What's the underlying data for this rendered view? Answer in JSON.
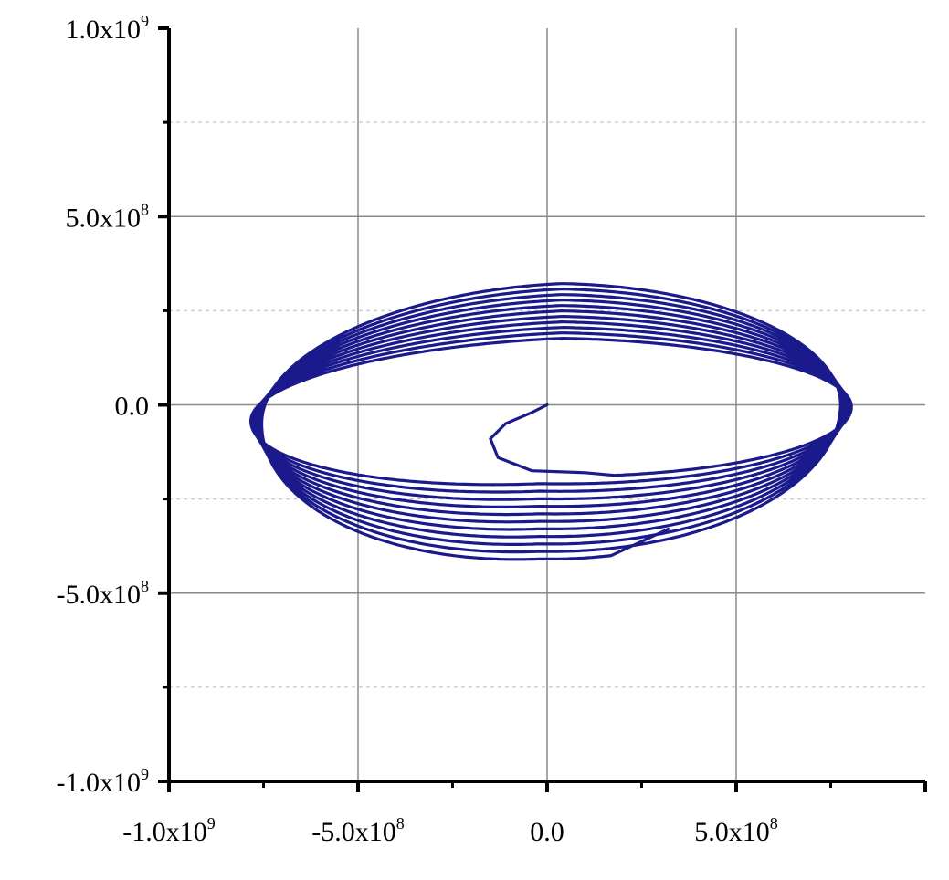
{
  "chart_data": {
    "type": "line",
    "title": "",
    "xlabel": "",
    "ylabel": "",
    "xlim": [
      -1000000000,
      1000000000
    ],
    "ylim": [
      -1000000000,
      1000000000
    ],
    "grid": true,
    "legend": "none",
    "x_major_ticks": [
      -1000000000,
      -500000000,
      0,
      500000000
    ],
    "y_major_ticks": [
      -1000000000,
      -500000000,
      0,
      500000000,
      1000000000
    ],
    "x_minor_gridlines": [],
    "y_minor_gridlines": [
      -750000000,
      -250000000,
      250000000,
      750000000
    ],
    "x_tick_labels": [
      {
        "mantissa": "-1.0x10",
        "exp": "9"
      },
      {
        "mantissa": "-5.0x10",
        "exp": "8"
      },
      {
        "mantissa": "0.0",
        "exp": ""
      },
      {
        "mantissa": "5.0x10",
        "exp": "8"
      }
    ],
    "y_tick_labels": [
      {
        "mantissa": "-1.0x10",
        "exp": "9"
      },
      {
        "mantissa": "-5.0x10",
        "exp": "8"
      },
      {
        "mantissa": "0.0",
        "exp": ""
      },
      {
        "mantissa": "5.0x10",
        "exp": "8"
      },
      {
        "mantissa": "1.0x10",
        "exp": "9"
      }
    ],
    "series": [
      {
        "color": "#1a1a8c",
        "trajectory": {
          "start": [
            0,
            0
          ],
          "turns": 11,
          "right_x": 800000000,
          "left_x": -790000000,
          "top_y_first": 160000000,
          "top_y_last": 320000000,
          "bottom_y_first": -180000000,
          "bottom_y_last": -400000000,
          "end": [
            320000000,
            -330000000
          ]
        }
      }
    ]
  }
}
